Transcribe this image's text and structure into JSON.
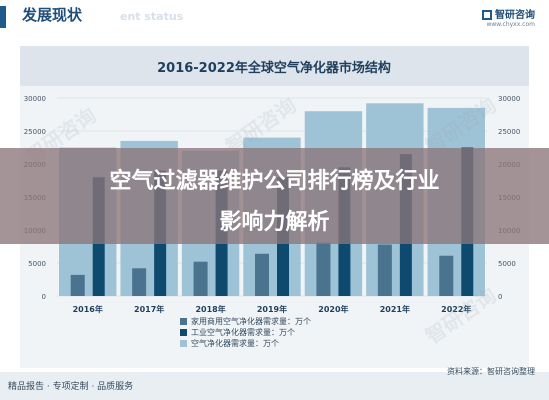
{
  "header": {
    "title": "发展现状",
    "subtitle": "ent status"
  },
  "brand": {
    "name": "智研咨询",
    "url": "www.chyxx.com"
  },
  "overlay": {
    "line1": "空气过滤器维护公司排行榜及行业",
    "line2": "影响力解析"
  },
  "footer": {
    "left": "精品报告 · 专项定制 · 品质服务",
    "source": "资料来源：智研咨询整理"
  },
  "watermark": "智研咨询",
  "colors": {
    "series1": "#4a7390",
    "series2": "#0e4a6e",
    "series3": "#9fc3d6"
  },
  "chart_data": {
    "type": "bar",
    "title": "2016-2022年全球空气净化器市场结构",
    "categories": [
      "2016年",
      "2017年",
      "2018年",
      "2019年",
      "2020年",
      "2021年",
      "2022年"
    ],
    "series": [
      {
        "name": "家用商用空气净化器需求量：万个",
        "values": [
          3200,
          4200,
          5200,
          6400,
          8100,
          7800,
          6100
        ]
      },
      {
        "name": "工业空气净化器需求量：万个",
        "values": [
          18000,
          19000,
          19000,
          18000,
          19500,
          21500,
          22500
        ]
      },
      {
        "name": "空气净化器需求量：万个",
        "values": [
          22500,
          23500,
          22000,
          24000,
          28000,
          29200,
          28500
        ]
      }
    ],
    "ylim": [
      0,
      30000
    ],
    "yticks": [
      "0",
      "5000",
      "10000",
      "15000",
      "20000",
      "25000",
      "30000"
    ],
    "grid": true,
    "legend": "bottom"
  }
}
